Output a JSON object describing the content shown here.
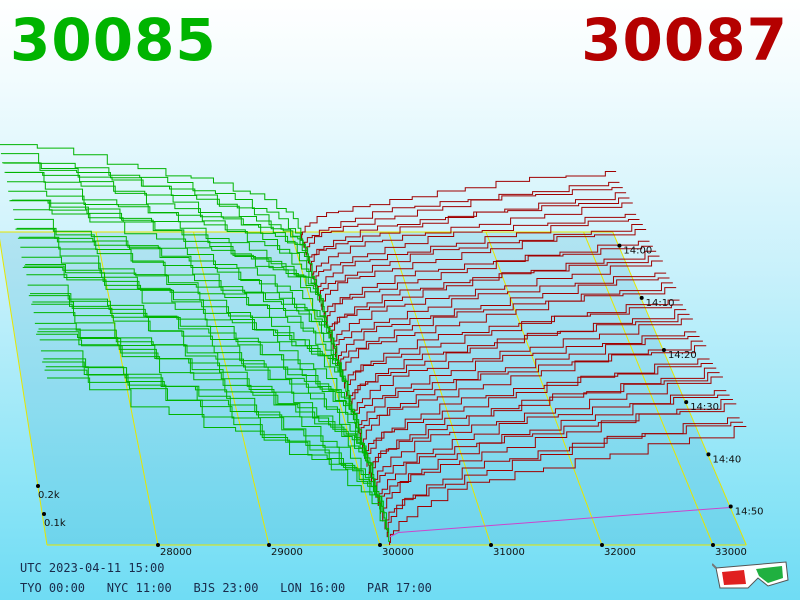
{
  "header": {
    "bid_price": "30085",
    "ask_price": "30087"
  },
  "colors": {
    "bid": "#00b400",
    "ask": "#b40000",
    "bid_line": "#00b400",
    "ask_line": "#a00000",
    "grid": "#e6e600",
    "mid_line": "#cc44cc"
  },
  "chart_data": {
    "type": "3d-depth",
    "x_axis": {
      "ticks": [
        28000,
        29000,
        30000,
        31000,
        32000,
        33000
      ],
      "labels": [
        "28000",
        "29000",
        "30000",
        "31000",
        "32000",
        "33000"
      ],
      "range": [
        27000,
        33300
      ]
    },
    "z_axis": {
      "ticks": [
        0.1,
        0.2
      ],
      "labels": [
        "0.1k",
        "0.2k"
      ]
    },
    "time_axis": {
      "labels": [
        "14:00",
        "14:10",
        "14:20",
        "14:30",
        "14:40",
        "14:50"
      ]
    },
    "bid_price": 30085,
    "ask_price": 30087,
    "snapshots": 40
  },
  "footer": {
    "utc": "UTC 2023-04-11 15:00",
    "tyo": "TYO 00:00",
    "nyc": "NYC 11:00",
    "bjs": "BJS 23:00",
    "lon": "LON 16:00",
    "par": "PAR 17:00"
  },
  "badge": {
    "icon": "3d-glasses-icon"
  }
}
